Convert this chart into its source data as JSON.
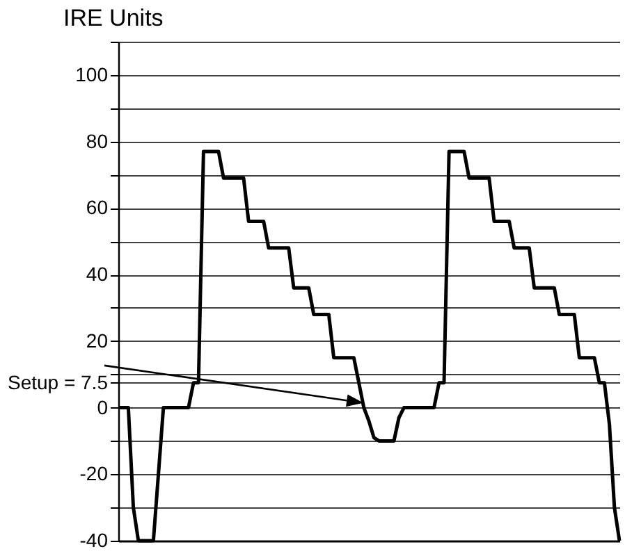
{
  "chart_data": {
    "type": "line",
    "ylabel": "IRE Units",
    "categories": [
      null,
      null,
      null,
      null,
      null,
      null,
      null,
      null,
      null,
      null,
      null,
      null,
      null,
      null,
      null,
      null,
      null,
      null,
      null,
      null,
      null,
      null,
      null,
      null,
      null,
      null,
      null,
      null,
      null,
      null,
      null,
      null,
      null,
      null,
      null,
      null,
      null,
      null,
      null,
      null,
      null,
      null,
      null,
      null,
      null,
      null,
      null,
      null,
      null,
      null,
      null,
      null,
      null,
      null,
      null,
      null,
      null,
      null,
      null,
      null,
      null,
      null,
      null,
      null,
      null,
      null,
      null,
      null,
      null,
      null,
      null,
      null,
      null,
      null,
      null,
      null,
      null,
      null,
      null,
      null,
      null,
      null,
      null,
      null,
      null,
      null,
      null,
      null,
      null,
      null,
      null,
      null,
      null,
      null,
      null,
      null,
      null,
      null,
      null,
      null,
      null
    ],
    "series": [
      {
        "color": "#000000",
        "values": [
          0,
          0,
          0,
          -30,
          -40,
          -40,
          -40,
          -40,
          -20,
          0,
          0,
          0,
          0,
          0,
          0,
          7.5,
          7.5,
          77,
          77,
          77,
          77,
          69,
          69,
          69,
          69,
          69,
          56,
          56,
          56,
          56,
          48,
          48,
          48,
          48,
          48,
          36,
          36,
          36,
          36,
          28,
          28,
          28,
          28,
          15,
          15,
          15,
          15,
          15,
          7.5,
          0,
          -4,
          -9,
          -10,
          -10,
          -10,
          -10,
          -3,
          0,
          0,
          0,
          0,
          0,
          0,
          0,
          7.5,
          7.5,
          77,
          77,
          77,
          77,
          69,
          69,
          69,
          69,
          69,
          56,
          56,
          56,
          56,
          48,
          48,
          48,
          48,
          36,
          36,
          36,
          36,
          36,
          28,
          28,
          28,
          28,
          15,
          15,
          15,
          15,
          7.5,
          7.5,
          -5,
          -30,
          -40
        ]
      }
    ],
    "ylim": [
      -40,
      110
    ],
    "yticks": [
      -40,
      {
        "value": -30,
        "label": null
      },
      -20,
      {
        "value": -10,
        "label": null
      },
      0,
      {
        "value": 7.5,
        "label": "Setup = 7.5"
      },
      {
        "value": 10,
        "label": null
      },
      20,
      {
        "value": 30,
        "label": null
      },
      40,
      {
        "value": 50,
        "label": null
      },
      60,
      {
        "value": 70,
        "label": null
      },
      80,
      {
        "value": 90,
        "label": null
      },
      100,
      {
        "value": 110,
        "label": null
      }
    ],
    "grid": "y",
    "tick_labels": "y",
    "line_style": "solid"
  }
}
